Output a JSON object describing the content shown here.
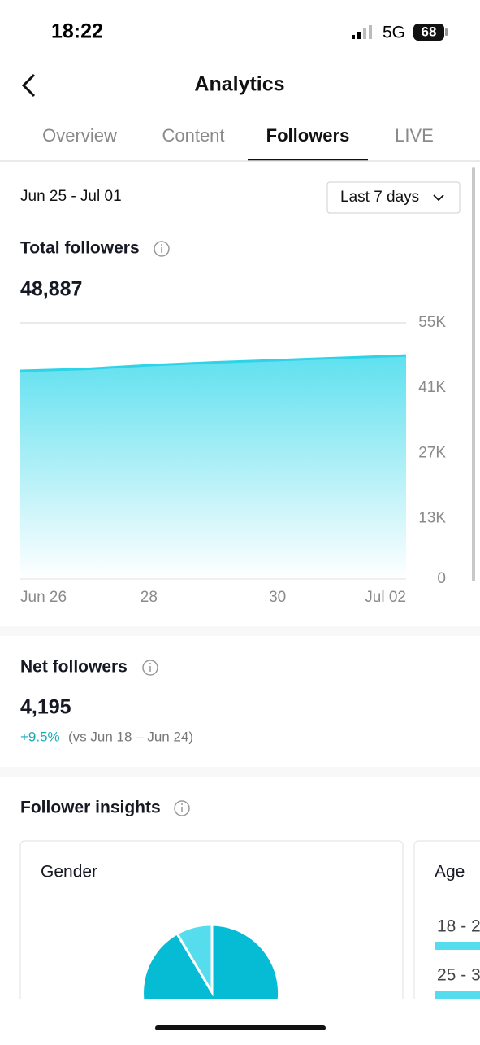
{
  "status_bar": {
    "time": "18:22",
    "network": "5G",
    "battery": "68"
  },
  "header": {
    "title": "Analytics"
  },
  "tabs": [
    "Overview",
    "Content",
    "Followers",
    "LIVE"
  ],
  "active_tab": 2,
  "date_range": "Jun 25 - Jul 01",
  "period_button": "Last 7 days",
  "total_followers": {
    "label": "Total followers",
    "value": "48,887"
  },
  "chart_data": {
    "type": "area",
    "categories": [
      "Jun 26",
      null,
      "28",
      null,
      "30",
      null,
      "Jul 02"
    ],
    "values": [
      44700,
      45100,
      45900,
      46500,
      47000,
      47500,
      48000
    ],
    "color": "#2dd3e6",
    "ylim": [
      0,
      55000
    ],
    "yticks": [
      0,
      {
        "value": 13000,
        "label": "13K"
      },
      {
        "value": 27000,
        "label": "27K"
      },
      {
        "value": 41000,
        "label": "41K"
      },
      {
        "value": 55000,
        "label": "55K"
      }
    ],
    "grid": true
  },
  "net_followers": {
    "label": "Net followers",
    "value": "4,195",
    "change": "+9.5%",
    "comparison": "(vs Jun 18 – Jun 24)"
  },
  "insights": {
    "title": "Follower insights",
    "gender_card": "Gender",
    "age_card": "Age",
    "age_rows": [
      "18 - 2",
      "25 - 3"
    ]
  }
}
